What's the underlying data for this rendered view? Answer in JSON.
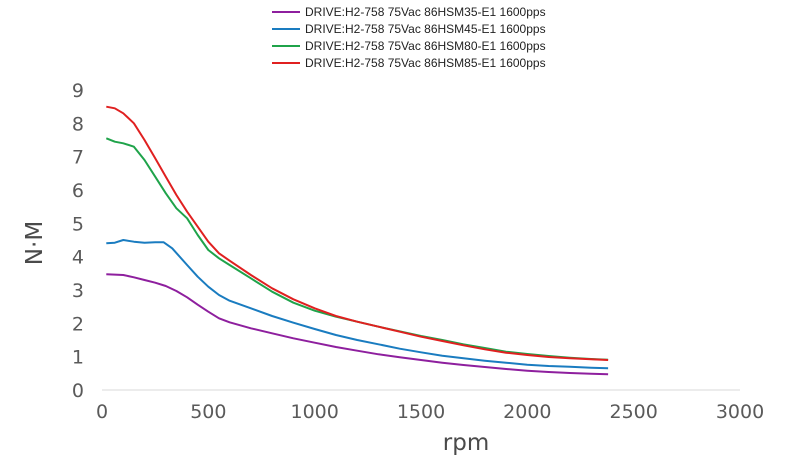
{
  "chart_data": {
    "type": "line",
    "title": "",
    "xlabel": "rpm",
    "ylabel": "N·M",
    "xlim": [
      0,
      3000
    ],
    "ylim": [
      0,
      9
    ],
    "xticks": [
      0,
      500,
      1000,
      1500,
      2000,
      2500,
      3000
    ],
    "yticks": [
      0,
      1,
      2,
      3,
      4,
      5,
      6,
      7,
      8,
      9
    ],
    "grid": false,
    "legend_position": "top",
    "series": [
      {
        "name": "DRIVE:H2-758 75Vac 86HSM35-E1 1600pps",
        "color": "#8e1f9e",
        "points": [
          [
            20,
            3.47
          ],
          [
            100,
            3.45
          ],
          [
            150,
            3.38
          ],
          [
            200,
            3.3
          ],
          [
            250,
            3.22
          ],
          [
            300,
            3.12
          ],
          [
            350,
            2.97
          ],
          [
            400,
            2.78
          ],
          [
            450,
            2.56
          ],
          [
            500,
            2.35
          ],
          [
            550,
            2.15
          ],
          [
            600,
            2.03
          ],
          [
            700,
            1.85
          ],
          [
            800,
            1.7
          ],
          [
            900,
            1.55
          ],
          [
            1000,
            1.42
          ],
          [
            1100,
            1.29
          ],
          [
            1200,
            1.18
          ],
          [
            1300,
            1.07
          ],
          [
            1400,
            0.98
          ],
          [
            1500,
            0.9
          ],
          [
            1600,
            0.82
          ],
          [
            1700,
            0.75
          ],
          [
            1800,
            0.69
          ],
          [
            1900,
            0.63
          ],
          [
            2000,
            0.58
          ],
          [
            2100,
            0.54
          ],
          [
            2200,
            0.51
          ],
          [
            2300,
            0.49
          ],
          [
            2380,
            0.47
          ]
        ]
      },
      {
        "name": "DRIVE:H2-758 75Vac 86HSM45-E1 1600pps",
        "color": "#1a7cc0",
        "points": [
          [
            20,
            4.4
          ],
          [
            60,
            4.42
          ],
          [
            100,
            4.5
          ],
          [
            150,
            4.45
          ],
          [
            200,
            4.42
          ],
          [
            250,
            4.43
          ],
          [
            290,
            4.43
          ],
          [
            330,
            4.25
          ],
          [
            400,
            3.75
          ],
          [
            450,
            3.4
          ],
          [
            500,
            3.1
          ],
          [
            550,
            2.85
          ],
          [
            600,
            2.68
          ],
          [
            700,
            2.45
          ],
          [
            800,
            2.22
          ],
          [
            900,
            2.02
          ],
          [
            1000,
            1.83
          ],
          [
            1100,
            1.65
          ],
          [
            1200,
            1.5
          ],
          [
            1300,
            1.37
          ],
          [
            1400,
            1.24
          ],
          [
            1500,
            1.13
          ],
          [
            1600,
            1.03
          ],
          [
            1700,
            0.95
          ],
          [
            1800,
            0.88
          ],
          [
            1900,
            0.82
          ],
          [
            2000,
            0.76
          ],
          [
            2100,
            0.72
          ],
          [
            2200,
            0.7
          ],
          [
            2300,
            0.67
          ],
          [
            2380,
            0.65
          ]
        ]
      },
      {
        "name": "DRIVE:H2-758 75Vac 86HSM80-E1 1600pps",
        "color": "#1fa34a",
        "points": [
          [
            20,
            7.55
          ],
          [
            60,
            7.45
          ],
          [
            100,
            7.4
          ],
          [
            150,
            7.3
          ],
          [
            200,
            6.9
          ],
          [
            250,
            6.4
          ],
          [
            300,
            5.9
          ],
          [
            350,
            5.45
          ],
          [
            400,
            5.15
          ],
          [
            450,
            4.65
          ],
          [
            500,
            4.2
          ],
          [
            550,
            3.95
          ],
          [
            600,
            3.75
          ],
          [
            700,
            3.35
          ],
          [
            800,
            2.95
          ],
          [
            900,
            2.62
          ],
          [
            1000,
            2.38
          ],
          [
            1100,
            2.2
          ],
          [
            1200,
            2.05
          ],
          [
            1300,
            1.9
          ],
          [
            1400,
            1.76
          ],
          [
            1500,
            1.62
          ],
          [
            1600,
            1.5
          ],
          [
            1700,
            1.37
          ],
          [
            1800,
            1.26
          ],
          [
            1900,
            1.15
          ],
          [
            2000,
            1.08
          ],
          [
            2100,
            1.02
          ],
          [
            2200,
            0.97
          ],
          [
            2300,
            0.93
          ],
          [
            2380,
            0.91
          ]
        ]
      },
      {
        "name": "DRIVE:H2-758 75Vac 86HSM85-E1 1600pps",
        "color": "#e02020",
        "points": [
          [
            20,
            8.5
          ],
          [
            60,
            8.45
          ],
          [
            100,
            8.3
          ],
          [
            150,
            8.0
          ],
          [
            200,
            7.5
          ],
          [
            250,
            6.95
          ],
          [
            300,
            6.4
          ],
          [
            350,
            5.85
          ],
          [
            400,
            5.35
          ],
          [
            450,
            4.9
          ],
          [
            500,
            4.45
          ],
          [
            550,
            4.1
          ],
          [
            600,
            3.88
          ],
          [
            700,
            3.45
          ],
          [
            800,
            3.05
          ],
          [
            900,
            2.72
          ],
          [
            1000,
            2.45
          ],
          [
            1100,
            2.22
          ],
          [
            1200,
            2.05
          ],
          [
            1300,
            1.9
          ],
          [
            1400,
            1.75
          ],
          [
            1500,
            1.6
          ],
          [
            1600,
            1.47
          ],
          [
            1700,
            1.34
          ],
          [
            1800,
            1.22
          ],
          [
            1900,
            1.12
          ],
          [
            2000,
            1.05
          ],
          [
            2100,
            0.99
          ],
          [
            2200,
            0.95
          ],
          [
            2300,
            0.92
          ],
          [
            2380,
            0.9
          ]
        ]
      }
    ]
  }
}
